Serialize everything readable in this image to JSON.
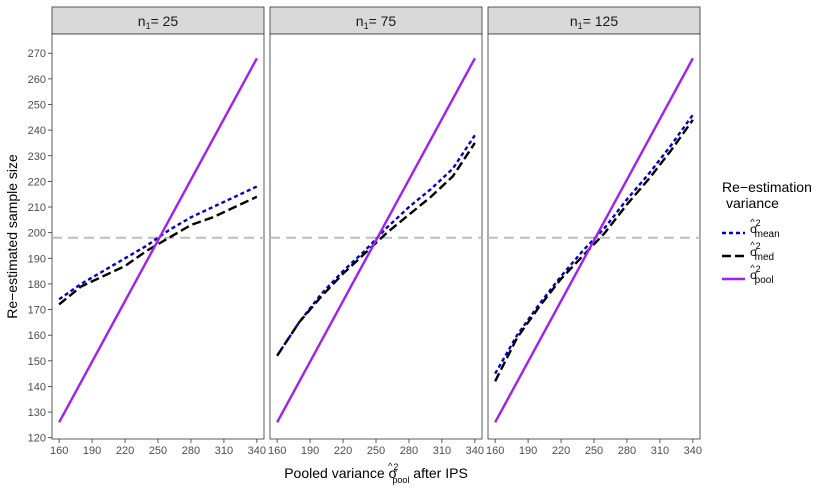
{
  "chart_data": {
    "type": "line",
    "facet_variable": "n1",
    "panels": [
      {
        "strip": "n1= 25",
        "series": [
          {
            "name": "mean",
            "x": [
              160,
              180,
              200,
              220,
              240,
              260,
              280,
              300,
              320,
              340
            ],
            "y": [
              174,
              180,
              185,
              190,
              195,
              201,
              206,
              210,
              214,
              218
            ]
          },
          {
            "name": "med",
            "x": [
              160,
              180,
              200,
              220,
              240,
              260,
              280,
              300,
              320,
              340
            ],
            "y": [
              172,
              179,
              183,
              187,
              193,
              198,
              203,
              206,
              210,
              214
            ]
          },
          {
            "name": "pool",
            "x": [
              160,
              340
            ],
            "y": [
              126,
              268
            ]
          }
        ]
      },
      {
        "strip": "n1= 75",
        "series": [
          {
            "name": "mean",
            "x": [
              160,
              180,
              200,
              220,
              240,
              260,
              280,
              300,
              320,
              340
            ],
            "y": [
              152,
              165,
              176,
              185,
              193,
              202,
              210,
              217,
              225,
              238
            ]
          },
          {
            "name": "med",
            "x": [
              160,
              180,
              200,
              220,
              240,
              260,
              280,
              300,
              320,
              340
            ],
            "y": [
              152,
              165,
              175,
              184,
              192,
              200,
              207,
              214,
              222,
              235
            ]
          },
          {
            "name": "pool",
            "x": [
              160,
              340
            ],
            "y": [
              126,
              268
            ]
          }
        ]
      },
      {
        "strip": "n1= 125",
        "series": [
          {
            "name": "mean",
            "x": [
              160,
              180,
              200,
              220,
              240,
              260,
              280,
              300,
              320,
              340
            ],
            "y": [
              145,
              160,
              172,
              183,
              193,
              202,
              213,
              223,
              234,
              246
            ]
          },
          {
            "name": "med",
            "x": [
              160,
              180,
              200,
              220,
              240,
              260,
              280,
              300,
              320,
              340
            ],
            "y": [
              142,
              159,
              171,
              182,
              191,
              200,
              211,
              221,
              232,
              244
            ]
          },
          {
            "name": "pool",
            "x": [
              160,
              340
            ],
            "y": [
              126,
              268
            ]
          }
        ]
      }
    ],
    "reference_line": {
      "y": 198,
      "style": "dashed",
      "color": "#bebebe"
    },
    "x_ticks": [
      160,
      190,
      220,
      250,
      280,
      310,
      340
    ],
    "y_ticks": [
      120,
      130,
      140,
      150,
      160,
      170,
      180,
      190,
      200,
      210,
      220,
      230,
      240,
      250,
      260,
      270
    ],
    "xlim": [
      153.5,
      346.5
    ],
    "ylim": [
      119.5,
      277.5
    ],
    "xlabel_prefix": "Pooled variance",
    "xlabel_symbol": "σ",
    "xlabel_hat": "^",
    "xlabel_sup": "2",
    "xlabel_sub": "pool",
    "xlabel_suffix": "after IPS",
    "ylabel": "Re−estimated sample size",
    "legend": {
      "title_line1": "Re−estimation",
      "title_line2": "variance",
      "placement": "right",
      "items": [
        {
          "key": "mean",
          "symbol": "σ",
          "hat": "^",
          "sup": "2",
          "sub": "mean",
          "color": "#0000cd",
          "dash": "4,3"
        },
        {
          "key": "med",
          "symbol": "σ",
          "hat": "^",
          "sup": "2",
          "sub": "med",
          "color": "#000000",
          "dash": "9,4"
        },
        {
          "key": "pool",
          "symbol": "σ",
          "hat": "^",
          "sup": "2",
          "sub": "pool",
          "color": "#a020f0",
          "dash": ""
        }
      ]
    },
    "grid": false
  }
}
